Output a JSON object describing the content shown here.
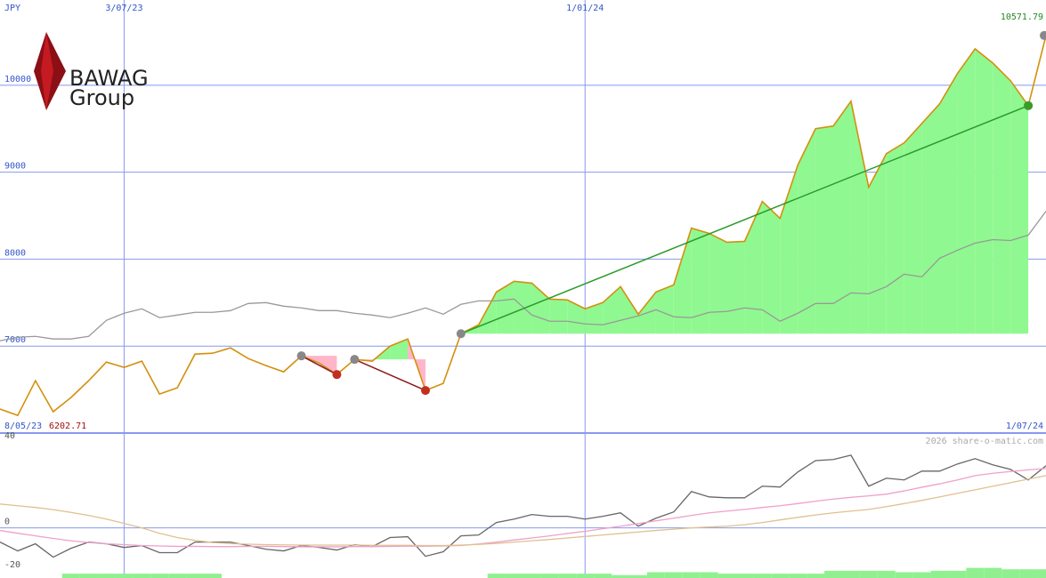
{
  "logo": {
    "line1": "BAWAG",
    "line2": "Group"
  },
  "watermark": "2026 share-o-matic.com",
  "chart_data": [
    {
      "type": "line",
      "y_unit": "JPY",
      "period": [
        "8/05/23",
        "1/07/24"
      ],
      "categories": [
        null,
        null,
        null,
        null,
        null,
        null,
        null,
        "3/07/23",
        null,
        null,
        null,
        null,
        null,
        null,
        null,
        null,
        null,
        null,
        null,
        null,
        null,
        null,
        null,
        null,
        null,
        null,
        null,
        null,
        null,
        null,
        null,
        null,
        null,
        "1/01/24",
        null,
        null,
        null,
        null,
        null,
        null,
        null,
        null,
        null,
        null,
        null,
        null,
        null,
        null,
        null,
        null,
        null,
        null,
        null,
        null,
        null,
        null,
        null,
        null,
        null,
        null
      ],
      "series": [
        {
          "color": "#d4900e",
          "values": [
            6276,
            6202.71,
            6602,
            6245,
            6408,
            6602,
            6816,
            6755,
            6827,
            6449,
            6520,
            6908,
            6918,
            6980,
            6857,
            6776,
            6704,
            6888,
            6806,
            6673,
            6847,
            6827,
            7000,
            7082,
            6490,
            6571,
            7143,
            7245,
            7622,
            7745,
            7724,
            7541,
            7531,
            7429,
            7500,
            7684,
            7367,
            7622,
            7704,
            8357,
            8296,
            8194,
            8204,
            8663,
            8469,
            9082,
            9500,
            9531,
            9816,
            8827,
            9214,
            9337,
            9561,
            9786,
            10133,
            10418,
            10255,
            10051,
            9765,
            10571.79
          ]
        },
        {
          "color": "#999999",
          "values": [
            7061,
            7102,
            7112,
            7082,
            7082,
            7112,
            7296,
            7378,
            7429,
            7327,
            7357,
            7388,
            7388,
            7408,
            7490,
            7500,
            7459,
            7439,
            7408,
            7408,
            7378,
            7357,
            7327,
            7378,
            7439,
            7367,
            7480,
            7520,
            7520,
            7541,
            7357,
            7286,
            7286,
            7255,
            7245,
            7296,
            7347,
            7418,
            7337,
            7327,
            7388,
            7398,
            7439,
            7418,
            7286,
            7378,
            7490,
            7490,
            7612,
            7602,
            7684,
            7827,
            7796,
            8010,
            8102,
            8184,
            8224,
            8214,
            8276,
            8551
          ]
        }
      ],
      "signals": [
        {
          "start": 17,
          "end": 19
        },
        {
          "start": 20,
          "end": 24
        },
        {
          "start": 26,
          "end": 58
        }
      ],
      "signal_colors": {
        "up_fill": "#90f890",
        "down_fill": "#ffb6c8",
        "up_line": "#2a9a2a",
        "down_line": "#8b1a1a",
        "up_marker": "#3a9a2a",
        "down_marker": "#c03020",
        "start_marker": "#888888"
      },
      "ylim": [
        6000,
        10980
      ],
      "yticks": [
        7000,
        8000,
        9000,
        10000
      ],
      "grid": true,
      "grid_color": "#8899ee"
    },
    {
      "type": "line",
      "series": [
        {
          "color": "#666666",
          "values": [
            -6.6,
            -10.7,
            -7.4,
            -13.6,
            -9.5,
            -6.6,
            -7.4,
            -9.1,
            -8.2,
            -11.5,
            -11.5,
            -6.6,
            -6.6,
            -6.6,
            -8.2,
            -9.9,
            -10.7,
            -8.2,
            -9.1,
            -10.3,
            -7.8,
            -8.7,
            -4.5,
            -4.1,
            -13.2,
            -11.1,
            -3.7,
            -3.3,
            2.5,
            4.1,
            6.2,
            5.4,
            5.4,
            4.1,
            5.4,
            7.0,
            0.8,
            4.5,
            7.4,
            16.9,
            14.4,
            14.0,
            14.0,
            19.4,
            19.0,
            26.0,
            31.3,
            31.8,
            33.8,
            19.4,
            23.1,
            22.3,
            26.4,
            26.4,
            29.7,
            32.2,
            29.3,
            27.2,
            22.3,
            28.9
          ]
        },
        {
          "color": "#f0a0c8",
          "values": [
            -1.2,
            -2.5,
            -3.7,
            -4.9,
            -6.0,
            -6.8,
            -7.4,
            -7.8,
            -8.2,
            -8.4,
            -8.6,
            -8.6,
            -8.7,
            -8.7,
            -8.6,
            -8.6,
            -8.7,
            -8.8,
            -8.8,
            -8.8,
            -8.7,
            -8.7,
            -8.6,
            -8.5,
            -8.5,
            -8.4,
            -8.2,
            -7.5,
            -6.6,
            -5.6,
            -4.7,
            -3.7,
            -2.6,
            -1.6,
            -0.4,
            0.8,
            2.0,
            3.3,
            4.5,
            5.8,
            7.0,
            7.8,
            8.6,
            9.5,
            10.3,
            11.3,
            12.4,
            13.4,
            14.2,
            14.9,
            15.7,
            17.2,
            18.9,
            20.5,
            22.3,
            24.3,
            25.4,
            26.2,
            27.0,
            27.6
          ]
        },
        {
          "color": "#e0c090",
          "values": [
            11.1,
            10.3,
            9.5,
            8.5,
            7.2,
            5.8,
            4.1,
            2.1,
            0.0,
            -2.5,
            -4.5,
            -5.8,
            -6.8,
            -7.3,
            -7.6,
            -7.8,
            -7.9,
            -8.0,
            -8.0,
            -8.0,
            -8.0,
            -8.1,
            -8.1,
            -8.1,
            -8.2,
            -8.2,
            -8.0,
            -7.7,
            -7.2,
            -6.6,
            -6.0,
            -5.4,
            -4.7,
            -4.0,
            -3.3,
            -2.6,
            -1.9,
            -1.2,
            -0.6,
            0.0,
            0.4,
            0.8,
            1.5,
            2.5,
            3.7,
            4.9,
            6.0,
            7.0,
            7.8,
            8.6,
            9.9,
            11.3,
            12.8,
            14.4,
            16.1,
            17.7,
            19.4,
            21.0,
            22.7,
            24.3
          ]
        }
      ],
      "volume": {
        "color": "#90f090",
        "vlim": [
          0,
          100
        ],
        "values": [
          0,
          0,
          0,
          0,
          3,
          3,
          3,
          3,
          3,
          3,
          3,
          3,
          3,
          0,
          0,
          0,
          0,
          0,
          0,
          0,
          0,
          0,
          0,
          0,
          0,
          0,
          0,
          0,
          3,
          3,
          3,
          3,
          3,
          3,
          3,
          2,
          2,
          4,
          4,
          4,
          4,
          3,
          3,
          3,
          3,
          3,
          3,
          5,
          5,
          5,
          5,
          4,
          4,
          5,
          5,
          7,
          7,
          6,
          6,
          6
        ]
      },
      "ylim": [
        -23.3,
        44.1
      ],
      "yticks": [
        40,
        0,
        -20
      ],
      "zero_line": 0,
      "grid_color": "#8899ee"
    }
  ]
}
